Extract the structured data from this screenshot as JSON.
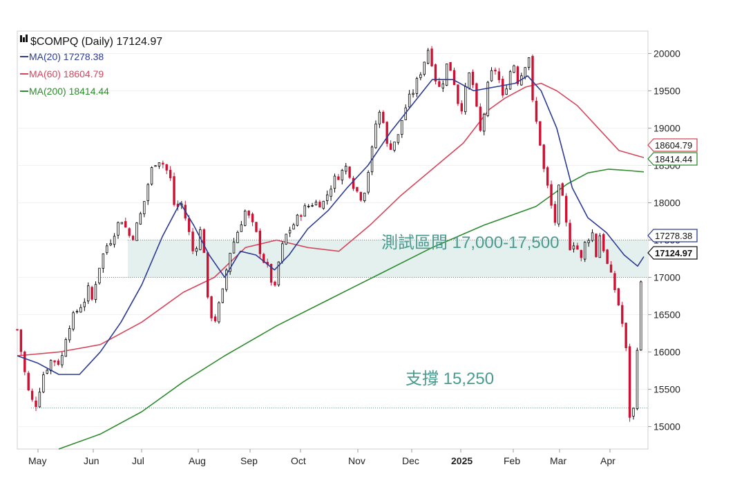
{
  "chart_data": {
    "type": "candlestick",
    "legend": {
      "icon": "chart-logo-icon",
      "title": "$COMPQ (Daily) 17124.97",
      "ma20_label": "MA(20) 17278.38",
      "ma60_label": "MA(60) 18604.79",
      "ma200_label": "MA(200) 18414.44"
    },
    "colors": {
      "up": "#000000",
      "down": "#cc1133",
      "ma20": "#2b3a94",
      "ma60": "#d6455a",
      "ma200": "#2d8a2d",
      "zone_fill": "#e3f0ee",
      "annotation": "#4a9a8f"
    },
    "y_axis": {
      "range": [
        14700,
        20300
      ],
      "ticks": [
        "15000",
        "15500",
        "16000",
        "16500",
        "17000",
        "17500",
        "18000",
        "18500",
        "19000",
        "19500",
        "20000"
      ]
    },
    "x_axis": {
      "months": [
        "May",
        "Jun",
        "Jul",
        "Aug",
        "Sep",
        "Oct",
        "Nov",
        "Dec",
        "2025",
        "Feb",
        "Mar",
        "Apr"
      ]
    },
    "price_tags": {
      "ma60": "18604.79",
      "ma200": "18414.44",
      "ma20": "17278.38",
      "last": "17124.97"
    },
    "annotations": {
      "zone_label": "測試區間 17,000-17,500",
      "zone_low": 17000,
      "zone_high": 17500,
      "support_label": "支撐 15,250",
      "support_level": 15250
    },
    "price_series": [
      [
        0,
        16300
      ],
      [
        10,
        15500
      ],
      [
        17,
        15250
      ],
      [
        25,
        15700
      ],
      [
        33,
        15900
      ],
      [
        42,
        15850
      ],
      [
        48,
        16300
      ],
      [
        55,
        16500
      ],
      [
        65,
        16700
      ],
      [
        70,
        16900
      ],
      [
        72,
        16700
      ],
      [
        78,
        17100
      ],
      [
        85,
        17400
      ],
      [
        90,
        17500
      ],
      [
        100,
        17800
      ],
      [
        110,
        17500
      ],
      [
        118,
        17800
      ],
      [
        124,
        18100
      ],
      [
        128,
        18400
      ],
      [
        135,
        18600
      ],
      [
        142,
        18500
      ],
      [
        148,
        18300
      ],
      [
        152,
        17900
      ],
      [
        158,
        18000
      ],
      [
        164,
        17700
      ],
      [
        170,
        17300
      ],
      [
        178,
        17700
      ],
      [
        181,
        17200
      ],
      [
        184,
        16600
      ],
      [
        190,
        16400
      ],
      [
        198,
        16800
      ],
      [
        204,
        17300
      ],
      [
        212,
        17600
      ],
      [
        220,
        17900
      ],
      [
        230,
        17600
      ],
      [
        235,
        17300
      ],
      [
        242,
        17100
      ],
      [
        248,
        16800
      ],
      [
        253,
        17300
      ],
      [
        260,
        17600
      ],
      [
        266,
        17700
      ],
      [
        275,
        17900
      ],
      [
        285,
        18000
      ],
      [
        295,
        18000
      ],
      [
        305,
        18300
      ],
      [
        312,
        18400
      ],
      [
        318,
        18500
      ],
      [
        325,
        18200
      ],
      [
        333,
        18050
      ],
      [
        338,
        18400
      ],
      [
        342,
        18700
      ],
      [
        347,
        19200
      ],
      [
        352,
        19200
      ],
      [
        357,
        18700
      ],
      [
        362,
        18800
      ],
      [
        368,
        18900
      ],
      [
        372,
        19200
      ],
      [
        378,
        19400
      ],
      [
        382,
        19500
      ],
      [
        390,
        19800
      ],
      [
        397,
        20100
      ],
      [
        402,
        19700
      ],
      [
        408,
        19500
      ],
      [
        415,
        19900
      ],
      [
        420,
        19700
      ],
      [
        427,
        19200
      ],
      [
        432,
        19500
      ],
      [
        437,
        19800
      ],
      [
        442,
        19300
      ],
      [
        447,
        18900
      ],
      [
        455,
        19700
      ],
      [
        462,
        19800
      ],
      [
        468,
        19400
      ],
      [
        474,
        19700
      ],
      [
        478,
        19900
      ],
      [
        483,
        19600
      ],
      [
        488,
        19800
      ],
      [
        493,
        20000
      ],
      [
        497,
        19300
      ],
      [
        503,
        18900
      ],
      [
        508,
        18400
      ],
      [
        513,
        18100
      ],
      [
        518,
        17700
      ],
      [
        523,
        18300
      ],
      [
        528,
        17800
      ],
      [
        533,
        17400
      ],
      [
        538,
        17500
      ],
      [
        543,
        17200
      ],
      [
        548,
        17500
      ],
      [
        555,
        17600
      ],
      [
        558,
        17300
      ],
      [
        562,
        17600
      ],
      [
        568,
        17200
      ],
      [
        575,
        16900
      ],
      [
        582,
        16500
      ],
      [
        587,
        16000
      ],
      [
        591,
        15000
      ],
      [
        595,
        15300
      ],
      [
        600,
        16800
      ],
      [
        604,
        17125
      ]
    ],
    "ma20_series": [
      [
        0,
        15950
      ],
      [
        20,
        15850
      ],
      [
        40,
        15700
      ],
      [
        60,
        15700
      ],
      [
        80,
        16000
      ],
      [
        100,
        16400
      ],
      [
        120,
        16900
      ],
      [
        140,
        17550
      ],
      [
        157,
        18000
      ],
      [
        170,
        17700
      ],
      [
        185,
        17300
      ],
      [
        200,
        17000
      ],
      [
        215,
        17350
      ],
      [
        230,
        17300
      ],
      [
        248,
        17100
      ],
      [
        262,
        17300
      ],
      [
        280,
        17650
      ],
      [
        300,
        17900
      ],
      [
        318,
        18200
      ],
      [
        338,
        18500
      ],
      [
        360,
        18950
      ],
      [
        380,
        19300
      ],
      [
        400,
        19650
      ],
      [
        420,
        19650
      ],
      [
        440,
        19500
      ],
      [
        460,
        19550
      ],
      [
        480,
        19600
      ],
      [
        492,
        19700
      ],
      [
        505,
        19500
      ],
      [
        520,
        19000
      ],
      [
        535,
        18200
      ],
      [
        550,
        17800
      ],
      [
        568,
        17600
      ],
      [
        585,
        17300
      ],
      [
        598,
        17150
      ],
      [
        604,
        17278
      ]
    ],
    "ma60_series": [
      [
        0,
        15950
      ],
      [
        40,
        16000
      ],
      [
        80,
        16100
      ],
      [
        120,
        16400
      ],
      [
        160,
        16800
      ],
      [
        190,
        17000
      ],
      [
        220,
        17400
      ],
      [
        250,
        17500
      ],
      [
        280,
        17400
      ],
      [
        310,
        17350
      ],
      [
        340,
        17700
      ],
      [
        370,
        18100
      ],
      [
        400,
        18450
      ],
      [
        430,
        18800
      ],
      [
        455,
        19250
      ],
      [
        470,
        19400
      ],
      [
        490,
        19550
      ],
      [
        505,
        19600
      ],
      [
        520,
        19500
      ],
      [
        540,
        19300
      ],
      [
        560,
        19000
      ],
      [
        580,
        18700
      ],
      [
        604,
        18605
      ]
    ],
    "ma200_series": [
      [
        40,
        14700
      ],
      [
        80,
        14900
      ],
      [
        120,
        15200
      ],
      [
        160,
        15600
      ],
      [
        200,
        15950
      ],
      [
        250,
        16350
      ],
      [
        300,
        16700
      ],
      [
        350,
        17050
      ],
      [
        400,
        17400
      ],
      [
        450,
        17700
      ],
      [
        500,
        17950
      ],
      [
        530,
        18250
      ],
      [
        550,
        18400
      ],
      [
        570,
        18450
      ],
      [
        590,
        18430
      ],
      [
        604,
        18414
      ]
    ]
  }
}
